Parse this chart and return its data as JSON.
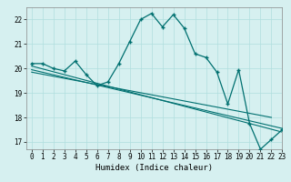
{
  "title": "",
  "xlabel": "Humidex (Indice chaleur)",
  "bg_color": "#d6f0f0",
  "line_color": "#007070",
  "grid_color": "#b0dede",
  "xlim": [
    -0.5,
    23
  ],
  "ylim": [
    16.7,
    22.5
  ],
  "xticks": [
    0,
    1,
    2,
    3,
    4,
    5,
    6,
    7,
    8,
    9,
    10,
    11,
    12,
    13,
    14,
    15,
    16,
    17,
    18,
    19,
    20,
    21,
    22,
    23
  ],
  "yticks": [
    17,
    18,
    19,
    20,
    21,
    22
  ],
  "main_line_x": [
    0,
    1,
    2,
    3,
    4,
    5,
    6,
    7,
    8,
    9,
    10,
    11,
    12,
    13,
    14,
    15,
    16,
    17,
    18,
    19,
    20,
    21,
    22,
    23
  ],
  "main_line_y": [
    20.2,
    20.2,
    20.0,
    19.9,
    20.3,
    19.75,
    19.3,
    19.45,
    20.2,
    21.1,
    22.0,
    22.25,
    21.7,
    22.2,
    21.65,
    20.6,
    20.45,
    19.85,
    18.55,
    19.95,
    17.75,
    16.7,
    17.1,
    17.5
  ],
  "reg_line1_x": [
    0,
    23
  ],
  "reg_line1_y": [
    20.1,
    17.4
  ],
  "reg_line2_x": [
    0,
    23
  ],
  "reg_line2_y": [
    19.95,
    17.55
  ],
  "reg_line3_x": [
    0,
    22
  ],
  "reg_line3_y": [
    19.85,
    18.0
  ]
}
